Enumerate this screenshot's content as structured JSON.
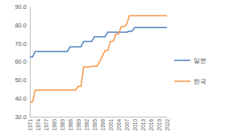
{
  "chart_data": {
    "type": "line",
    "categories": [
      "1971",
      null,
      null,
      "1974",
      null,
      null,
      "1977",
      null,
      null,
      "1980",
      null,
      null,
      "1983",
      null,
      null,
      "1986",
      null,
      null,
      "1989",
      null,
      null,
      "1992",
      null,
      null,
      "1995",
      null,
      null,
      "1998",
      null,
      null,
      "2001",
      null,
      null,
      "2004",
      null,
      null,
      "2007",
      null,
      null,
      "2010",
      null,
      null,
      "2013",
      null,
      null,
      "2016",
      null,
      null,
      "2019",
      null,
      null,
      "2022"
    ],
    "series": [
      {
        "name": "일본",
        "color": "#4f81bd",
        "values": [
          62.5,
          62.5,
          65.5,
          65.5,
          65.5,
          65.5,
          65.5,
          65.5,
          65.5,
          65.5,
          65.5,
          65.5,
          65.5,
          65.5,
          65.5,
          68,
          68,
          68,
          68,
          68,
          71,
          71,
          71,
          71,
          73.5,
          73.5,
          73.5,
          73.5,
          73.5,
          76,
          76,
          76,
          76,
          76,
          76,
          76,
          76,
          76.5,
          76.5,
          78.5,
          78.5,
          78.5,
          78.5,
          78.5,
          78.5,
          78.5,
          78.5,
          78.5,
          78.5,
          78.5,
          78.5,
          78.5
        ]
      },
      {
        "name": "한국",
        "color": "#f79646",
        "values": [
          38,
          38,
          44.5,
          44.5,
          44.5,
          44.5,
          44.5,
          44.5,
          44.5,
          44.5,
          44.5,
          44.5,
          44.5,
          44.5,
          44.5,
          44.5,
          44.5,
          44.5,
          46.5,
          46.5,
          57,
          57,
          57,
          57.5,
          57.5,
          57.5,
          60,
          63,
          66,
          66,
          71,
          71,
          75,
          75,
          79,
          79,
          80,
          85,
          85,
          85,
          85,
          85,
          85,
          85,
          85,
          85,
          85,
          85,
          85,
          85,
          85,
          85
        ]
      }
    ],
    "ylim": [
      30,
      90
    ],
    "yticks": [
      {
        "value": 30,
        "label": "30.0"
      },
      {
        "value": 40,
        "label": "40.0"
      },
      {
        "value": 50,
        "label": "50.0"
      },
      {
        "value": 60,
        "label": "60.0"
      },
      {
        "value": 70,
        "label": "70.0"
      },
      {
        "value": 80,
        "label": "80.0"
      },
      {
        "value": 90,
        "label": "90.0"
      }
    ],
    "grid": false,
    "legend": "right"
  }
}
